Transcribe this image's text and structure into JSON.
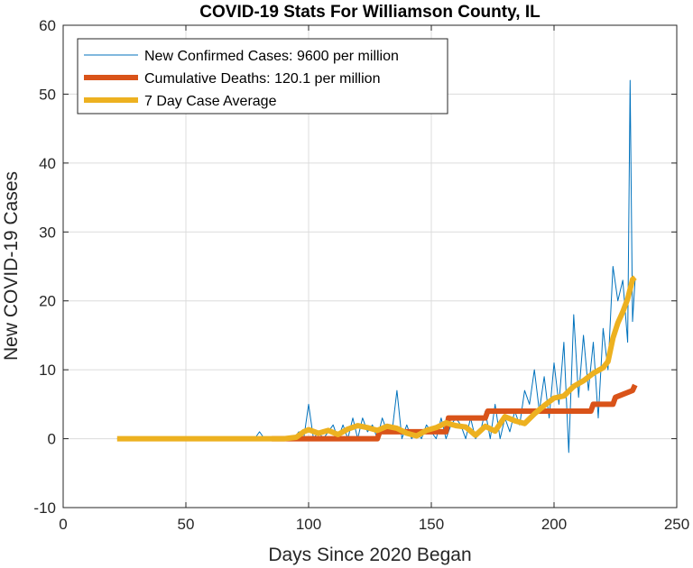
{
  "chart_data": {
    "type": "line",
    "title": "COVID-19 Stats For Williamson County, IL",
    "xlabel": "Days Since 2020 Began",
    "ylabel": "New COVID-19 Cases",
    "xlim": [
      0,
      250
    ],
    "ylim": [
      -10,
      60
    ],
    "xticks": [
      0,
      50,
      100,
      150,
      200,
      250
    ],
    "yticks": [
      -10,
      0,
      10,
      20,
      30,
      40,
      50,
      60
    ],
    "grid": true,
    "legend_position": "top-left",
    "series": [
      {
        "name": "New Confirmed Cases: 9600 per million",
        "color": "#0072BD",
        "width": 1,
        "x": [
          22,
          30,
          40,
          50,
          60,
          70,
          78,
          80,
          82,
          84,
          86,
          88,
          90,
          92,
          94,
          96,
          98,
          100,
          102,
          104,
          106,
          108,
          110,
          112,
          114,
          116,
          118,
          120,
          122,
          124,
          126,
          128,
          130,
          132,
          134,
          136,
          138,
          140,
          142,
          144,
          146,
          148,
          150,
          152,
          154,
          156,
          158,
          160,
          162,
          164,
          166,
          168,
          170,
          172,
          174,
          176,
          178,
          180,
          182,
          184,
          186,
          188,
          190,
          192,
          194,
          196,
          198,
          200,
          202,
          204,
          206,
          208,
          210,
          212,
          214,
          216,
          218,
          220,
          222,
          224,
          226,
          228,
          230,
          231,
          232,
          233
        ],
        "y": [
          0,
          0,
          0,
          0,
          0,
          0,
          0,
          1,
          0,
          0,
          0,
          0,
          0,
          0,
          0,
          1,
          0,
          5,
          0,
          1,
          0,
          1,
          2,
          0,
          2,
          0,
          3,
          0,
          3,
          1,
          2,
          0,
          3,
          1,
          1,
          7,
          0,
          2,
          0,
          1,
          0,
          2,
          1,
          0,
          3,
          0,
          2,
          3,
          2,
          0,
          3,
          0,
          1,
          4,
          0,
          5,
          0,
          3,
          1,
          4,
          2,
          7,
          5,
          10,
          4,
          9,
          3,
          11,
          5,
          14,
          -2,
          18,
          6,
          15,
          7,
          14,
          3,
          16,
          10,
          25,
          20,
          23,
          14,
          52,
          17,
          23
        ]
      },
      {
        "name": "Cumulative Deaths: 120.1 per million",
        "color": "#D95319",
        "width": 6,
        "x": [
          85,
          128,
          129,
          156,
          157,
          172,
          173,
          204,
          205,
          215,
          216,
          224,
          225,
          232,
          233
        ],
        "y": [
          0,
          0,
          1,
          1,
          3,
          3,
          4,
          4,
          4,
          4,
          5,
          5,
          6,
          7,
          7.8
        ]
      },
      {
        "name": "7 Day Case Average",
        "color": "#EDB120",
        "width": 6,
        "x": [
          22,
          40,
          60,
          80,
          90,
          95,
          98,
          100,
          104,
          108,
          112,
          116,
          120,
          124,
          128,
          132,
          136,
          140,
          144,
          148,
          152,
          156,
          160,
          164,
          168,
          172,
          176,
          180,
          184,
          188,
          192,
          196,
          200,
          204,
          208,
          212,
          216,
          220,
          222,
          224,
          226,
          228,
          230,
          232,
          233
        ],
        "y": [
          0,
          0,
          0,
          0,
          0,
          0.2,
          1,
          1.3,
          0.8,
          1.2,
          0.6,
          1.4,
          1.9,
          1.6,
          1.2,
          1.8,
          1.5,
          0.8,
          0.4,
          1.2,
          1.6,
          2.3,
          1.9,
          1.7,
          0.5,
          1.8,
          1.1,
          3.2,
          2.6,
          2.2,
          3.6,
          4.8,
          5.9,
          6.2,
          7.6,
          8.4,
          9.5,
          10.3,
          11.2,
          14.6,
          16.8,
          18.4,
          20.3,
          23.1,
          23.4
        ]
      }
    ]
  }
}
